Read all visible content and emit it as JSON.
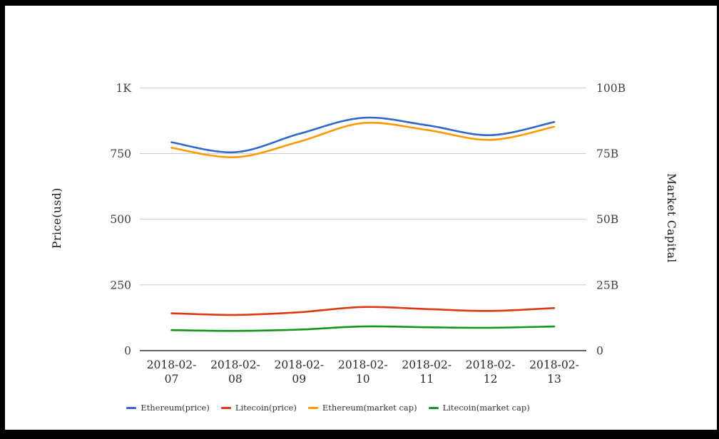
{
  "chart_data": {
    "type": "line",
    "x": [
      "2018-02-07",
      "2018-02-08",
      "2018-02-09",
      "2018-02-10",
      "2018-02-11",
      "2018-02-12",
      "2018-02-13"
    ],
    "series": [
      {
        "name": "Ethereum(price)",
        "axis": "left",
        "color": "#3366cc",
        "values": [
          793,
          755,
          825,
          886,
          858,
          820,
          870
        ]
      },
      {
        "name": "Litecoin(price)",
        "axis": "left",
        "color": "#dc3912",
        "values": [
          142,
          136,
          146,
          166,
          158,
          151,
          162
        ]
      },
      {
        "name": "Ethereum(market cap)",
        "axis": "right",
        "color": "#ff9900",
        "values": [
          77.2,
          73.6,
          79.5,
          86.6,
          84.0,
          80.2,
          85.2
        ]
      },
      {
        "name": "Litecoin(market cap)",
        "axis": "right",
        "color": "#109618",
        "values": [
          7.8,
          7.5,
          8.0,
          9.2,
          8.9,
          8.7,
          9.2
        ]
      }
    ],
    "left_axis": {
      "label": "Price(usd)",
      "ticks": [
        "0",
        "250",
        "500",
        "750",
        "1K"
      ],
      "range": [
        0,
        1000
      ]
    },
    "right_axis": {
      "label": "Market Capital",
      "ticks": [
        "0",
        "25B",
        "50B",
        "75B",
        "100B"
      ],
      "range": [
        0,
        100
      ]
    },
    "grid": true,
    "legend_position": "bottom",
    "colors": {
      "gridline": "#cccccc",
      "axis_line": "#333333",
      "tick_label": "#404040",
      "x_label": "#2b2b2b"
    }
  }
}
